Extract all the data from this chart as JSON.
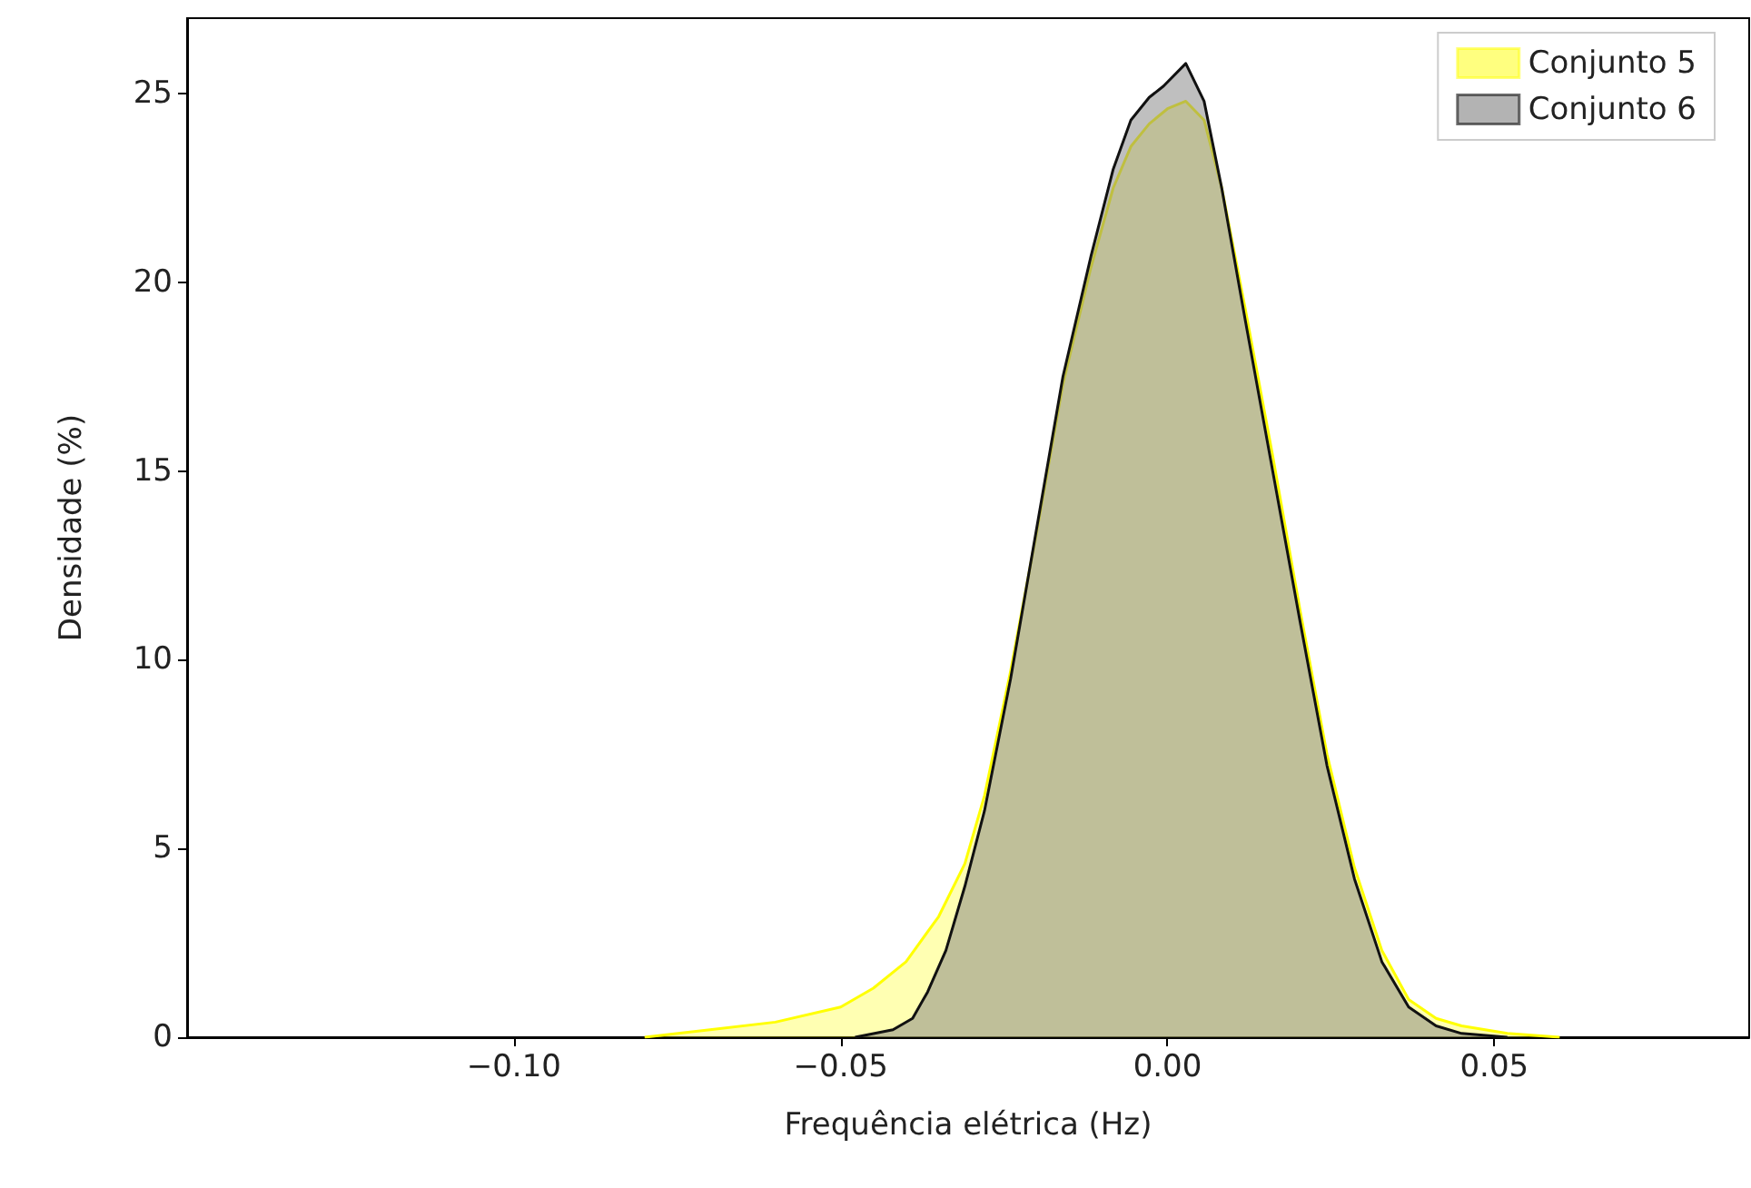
{
  "chart_data": {
    "type": "area",
    "xlabel": "Frequência elétrica (Hz)",
    "ylabel": "Densidade (%)",
    "xlim": [
      -0.15,
      0.089
    ],
    "ylim": [
      0,
      27
    ],
    "xticks": [
      {
        "value": -0.1,
        "label": "−0.10"
      },
      {
        "value": -0.05,
        "label": "−0.05"
      },
      {
        "value": 0,
        "label": "0.00"
      },
      {
        "value": 0.05,
        "label": "0.05"
      }
    ],
    "yticks": [
      0,
      5,
      10,
      15,
      20,
      25
    ],
    "grid": false,
    "legend": "top right",
    "series": [
      {
        "name": "Conjunto 5",
        "color": "#ffff00",
        "x": [
          -0.08,
          -0.07,
          -0.06,
          -0.05,
          -0.045,
          -0.04,
          -0.035,
          -0.031,
          -0.028,
          -0.024,
          -0.02,
          -0.016,
          -0.0117,
          -0.0083,
          -0.0056,
          -0.0028,
          0,
          0.0028,
          0.0056,
          0.0083,
          0.0119,
          0.0161,
          0.0203,
          0.0244,
          0.0286,
          0.0328,
          0.0369,
          0.0411,
          0.045,
          0.052,
          0.06
        ],
        "values": [
          0,
          0.2,
          0.4,
          0.8,
          1.3,
          2.0,
          3.2,
          4.6,
          6.4,
          9.7,
          13.4,
          17.3,
          20.4,
          22.5,
          23.6,
          24.2,
          24.6,
          24.8,
          24.3,
          22.5,
          19.3,
          15.4,
          11.3,
          7.5,
          4.5,
          2.3,
          1.0,
          0.5,
          0.3,
          0.1,
          0
        ]
      },
      {
        "name": "Conjunto 6",
        "color": "#808080",
        "x": [
          -0.0478,
          -0.042,
          -0.039,
          -0.0367,
          -0.0339,
          -0.031,
          -0.028,
          -0.024,
          -0.02,
          -0.016,
          -0.0117,
          -0.0083,
          -0.0056,
          -0.0028,
          -0.0006,
          0.0028,
          0.0056,
          0.0083,
          0.0119,
          0.0161,
          0.0203,
          0.0244,
          0.0286,
          0.0328,
          0.0369,
          0.0411,
          0.045,
          0.052
        ],
        "values": [
          0,
          0.2,
          0.5,
          1.2,
          2.3,
          4.0,
          6.0,
          9.5,
          13.5,
          17.5,
          20.7,
          23,
          24.3,
          24.9,
          25.2,
          25.8,
          24.8,
          22.5,
          19,
          15,
          11,
          7.2,
          4.2,
          2.0,
          0.8,
          0.3,
          0.1,
          0
        ]
      }
    ]
  }
}
